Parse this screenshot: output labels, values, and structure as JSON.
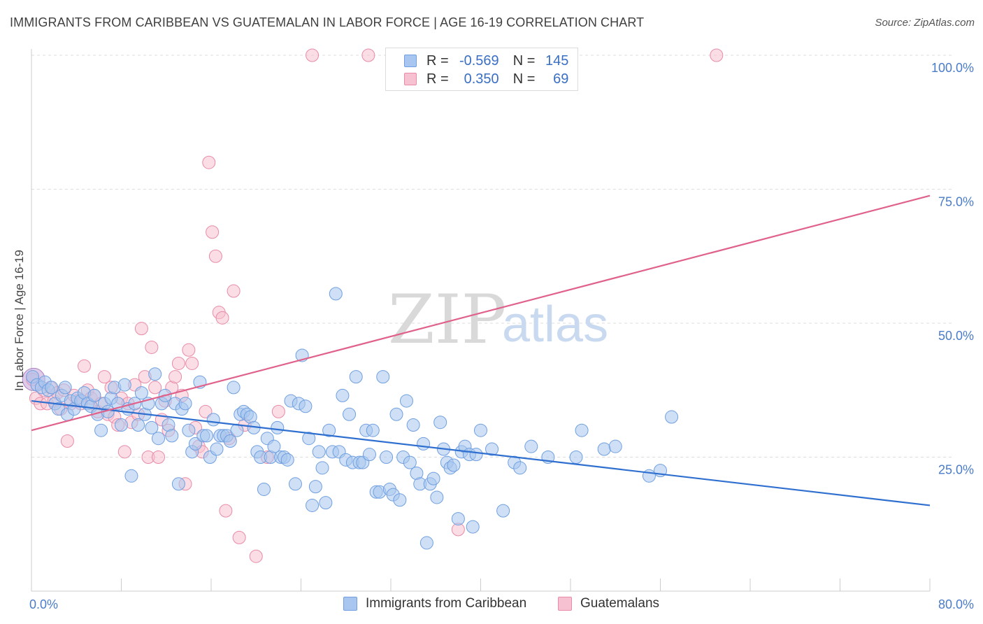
{
  "title": "IMMIGRANTS FROM CARIBBEAN VS GUATEMALAN IN LABOR FORCE | AGE 16-19 CORRELATION CHART",
  "source": "Source: ZipAtlas.com",
  "watermark": {
    "zip": "ZIP",
    "atlas": "atlas"
  },
  "legend": {
    "rows": [
      {
        "r_label": "R =",
        "r_value": "-0.569",
        "n_label": "N =",
        "n_value": "145"
      },
      {
        "r_label": "R =",
        "r_value": "0.350",
        "n_label": "N =",
        "n_value": "69"
      }
    ]
  },
  "bottom_legend": {
    "series1": "Immigrants from Caribbean",
    "series2": "Guatemalans"
  },
  "colors": {
    "blue_fill": "#a8c6ef",
    "blue_stroke": "#6f9fe0",
    "blue_line": "#2f6fcf",
    "pink_fill": "#f6c1d0",
    "pink_stroke": "#e98ba8",
    "pink_line": "#e0628a",
    "grid": "#dddddd",
    "axis_text": "#4a7cc9"
  },
  "chart_data": {
    "type": "scatter",
    "title": "IMMIGRANTS FROM CARIBBEAN VS GUATEMALAN IN LABOR FORCE | AGE 16-19 CORRELATION CHART",
    "xlabel": "",
    "ylabel": "In Labor Force | Age 16-19",
    "xlim": [
      0,
      80
    ],
    "ylim": [
      0,
      102
    ],
    "x_tick_labels": [
      "0.0%",
      "80.0%"
    ],
    "y_ticks": [
      25,
      50,
      75,
      100
    ],
    "y_tick_labels": [
      "25.0%",
      "50.0%",
      "75.0%",
      "100.0%"
    ],
    "series": [
      {
        "name": "Immigrants from Caribbean",
        "R": -0.569,
        "N": 145,
        "trend": {
          "x": [
            0,
            80
          ],
          "y": [
            35.5,
            16.0
          ]
        },
        "points": [
          [
            0.1,
            40.0
          ],
          [
            0.5,
            38.5
          ],
          [
            0.9,
            38.0
          ],
          [
            1.2,
            39.0
          ],
          [
            1.5,
            37.5
          ],
          [
            1.8,
            38.0
          ],
          [
            2.1,
            35.0
          ],
          [
            2.4,
            34.0
          ],
          [
            2.7,
            36.5
          ],
          [
            3.0,
            38.0
          ],
          [
            3.2,
            33.0
          ],
          [
            3.5,
            35.5
          ],
          [
            3.8,
            34.0
          ],
          [
            4.1,
            36.0
          ],
          [
            4.4,
            35.5
          ],
          [
            4.7,
            37.0
          ],
          [
            5.0,
            35.0
          ],
          [
            5.3,
            34.5
          ],
          [
            5.6,
            36.5
          ],
          [
            5.9,
            33.0
          ],
          [
            6.2,
            30.0
          ],
          [
            6.5,
            35.0
          ],
          [
            6.8,
            33.5
          ],
          [
            7.1,
            36.0
          ],
          [
            7.4,
            38.0
          ],
          [
            7.7,
            35.0
          ],
          [
            8.0,
            31.0
          ],
          [
            8.3,
            38.5
          ],
          [
            8.6,
            34.0
          ],
          [
            8.9,
            21.5
          ],
          [
            9.2,
            35.0
          ],
          [
            9.5,
            31.0
          ],
          [
            9.8,
            37.0
          ],
          [
            10.1,
            33.0
          ],
          [
            10.4,
            35.0
          ],
          [
            10.7,
            30.5
          ],
          [
            11.0,
            40.5
          ],
          [
            11.3,
            28.5
          ],
          [
            11.6,
            35.0
          ],
          [
            11.9,
            36.5
          ],
          [
            12.2,
            31.0
          ],
          [
            12.5,
            29.0
          ],
          [
            12.8,
            35.0
          ],
          [
            13.1,
            20.0
          ],
          [
            13.4,
            34.0
          ],
          [
            13.7,
            35.0
          ],
          [
            14.0,
            30.0
          ],
          [
            14.3,
            26.0
          ],
          [
            14.6,
            27.5
          ],
          [
            15.0,
            39.0
          ],
          [
            15.3,
            29.0
          ],
          [
            15.6,
            29.0
          ],
          [
            15.9,
            25.0
          ],
          [
            16.2,
            32.0
          ],
          [
            16.5,
            26.5
          ],
          [
            16.8,
            29.0
          ],
          [
            17.1,
            29.0
          ],
          [
            17.4,
            29.0
          ],
          [
            17.7,
            28.0
          ],
          [
            18.0,
            38.0
          ],
          [
            18.3,
            30.0
          ],
          [
            18.6,
            33.0
          ],
          [
            18.9,
            33.5
          ],
          [
            19.2,
            33.0
          ],
          [
            19.5,
            32.5
          ],
          [
            19.8,
            30.5
          ],
          [
            20.1,
            26.0
          ],
          [
            20.4,
            25.0
          ],
          [
            20.7,
            19.0
          ],
          [
            21.0,
            28.5
          ],
          [
            21.3,
            25.0
          ],
          [
            21.6,
            27.0
          ],
          [
            21.9,
            30.5
          ],
          [
            22.2,
            25.0
          ],
          [
            22.5,
            25.0
          ],
          [
            22.8,
            24.5
          ],
          [
            23.1,
            35.5
          ],
          [
            23.5,
            20.0
          ],
          [
            23.8,
            35.0
          ],
          [
            24.1,
            44.0
          ],
          [
            24.4,
            34.5
          ],
          [
            24.7,
            28.5
          ],
          [
            25.0,
            16.0
          ],
          [
            25.3,
            19.5
          ],
          [
            25.6,
            26.0
          ],
          [
            25.9,
            23.0
          ],
          [
            26.2,
            16.5
          ],
          [
            26.5,
            30.0
          ],
          [
            26.8,
            26.0
          ],
          [
            27.1,
            55.5
          ],
          [
            27.4,
            26.0
          ],
          [
            27.7,
            36.5
          ],
          [
            28.0,
            24.5
          ],
          [
            28.3,
            33.0
          ],
          [
            28.6,
            24.0
          ],
          [
            28.9,
            40.0
          ],
          [
            29.2,
            24.0
          ],
          [
            29.5,
            24.0
          ],
          [
            29.8,
            30.0
          ],
          [
            30.1,
            25.5
          ],
          [
            30.4,
            30.0
          ],
          [
            30.7,
            18.5
          ],
          [
            31.0,
            18.5
          ],
          [
            31.3,
            40.0
          ],
          [
            31.6,
            25.0
          ],
          [
            31.9,
            19.0
          ],
          [
            32.2,
            18.0
          ],
          [
            32.5,
            33.0
          ],
          [
            32.8,
            17.0
          ],
          [
            33.1,
            25.0
          ],
          [
            33.4,
            35.5
          ],
          [
            33.7,
            24.0
          ],
          [
            34.0,
            31.0
          ],
          [
            34.3,
            22.0
          ],
          [
            34.6,
            20.0
          ],
          [
            34.9,
            27.5
          ],
          [
            35.2,
            9.0
          ],
          [
            35.5,
            20.0
          ],
          [
            35.8,
            21.0
          ],
          [
            36.1,
            17.5
          ],
          [
            36.4,
            31.5
          ],
          [
            36.7,
            26.5
          ],
          [
            37.0,
            24.0
          ],
          [
            37.3,
            23.0
          ],
          [
            37.6,
            23.5
          ],
          [
            38.0,
            13.5
          ],
          [
            38.3,
            26.0
          ],
          [
            38.6,
            27.0
          ],
          [
            39.0,
            25.5
          ],
          [
            39.3,
            12.0
          ],
          [
            39.6,
            25.5
          ],
          [
            40.0,
            30.0
          ],
          [
            41.0,
            26.5
          ],
          [
            42.0,
            15.0
          ],
          [
            43.0,
            24.0
          ],
          [
            43.5,
            23.0
          ],
          [
            44.5,
            27.0
          ],
          [
            46.0,
            25.0
          ],
          [
            48.5,
            25.0
          ],
          [
            49.0,
            30.0
          ],
          [
            51.0,
            26.5
          ],
          [
            52.0,
            27.0
          ],
          [
            55.0,
            21.5
          ],
          [
            56.0,
            22.5
          ],
          [
            57.0,
            32.5
          ]
        ]
      },
      {
        "name": "Guatemalans",
        "R": 0.35,
        "N": 69,
        "trend": {
          "x": [
            0,
            80
          ],
          "y": [
            30.0,
            73.8
          ]
        },
        "points": [
          [
            0.1,
            39.5
          ],
          [
            0.4,
            36.0
          ],
          [
            0.8,
            35.0
          ],
          [
            1.1,
            37.5
          ],
          [
            1.4,
            35.0
          ],
          [
            1.7,
            38.0
          ],
          [
            2.0,
            35.5
          ],
          [
            2.3,
            37.0
          ],
          [
            2.6,
            34.0
          ],
          [
            2.9,
            37.5
          ],
          [
            3.2,
            28.0
          ],
          [
            3.5,
            35.0
          ],
          [
            3.8,
            36.5
          ],
          [
            4.1,
            35.5
          ],
          [
            4.4,
            35.0
          ],
          [
            4.7,
            42.0
          ],
          [
            5.0,
            37.5
          ],
          [
            5.3,
            36.0
          ],
          [
            5.6,
            36.5
          ],
          [
            5.9,
            33.5
          ],
          [
            6.2,
            35.0
          ],
          [
            6.5,
            40.0
          ],
          [
            6.8,
            33.0
          ],
          [
            7.1,
            38.0
          ],
          [
            7.4,
            32.5
          ],
          [
            7.7,
            31.0
          ],
          [
            8.0,
            36.0
          ],
          [
            8.3,
            26.0
          ],
          [
            8.6,
            35.0
          ],
          [
            8.9,
            31.5
          ],
          [
            9.2,
            38.5
          ],
          [
            9.5,
            33.0
          ],
          [
            9.8,
            49.0
          ],
          [
            10.1,
            40.0
          ],
          [
            10.4,
            25.0
          ],
          [
            10.7,
            45.5
          ],
          [
            11.0,
            38.0
          ],
          [
            11.3,
            25.0
          ],
          [
            11.6,
            32.0
          ],
          [
            11.9,
            35.5
          ],
          [
            12.2,
            30.0
          ],
          [
            12.5,
            38.0
          ],
          [
            12.8,
            40.0
          ],
          [
            13.1,
            42.5
          ],
          [
            13.4,
            36.5
          ],
          [
            13.7,
            20.0
          ],
          [
            14.0,
            45.0
          ],
          [
            14.3,
            42.5
          ],
          [
            14.6,
            30.5
          ],
          [
            14.9,
            27.0
          ],
          [
            15.2,
            26.0
          ],
          [
            15.5,
            33.5
          ],
          [
            15.8,
            80.0
          ],
          [
            16.1,
            67.0
          ],
          [
            16.4,
            62.5
          ],
          [
            16.7,
            52.0
          ],
          [
            17.0,
            51.0
          ],
          [
            17.3,
            15.0
          ],
          [
            17.6,
            28.5
          ],
          [
            18.0,
            56.0
          ],
          [
            18.5,
            10.0
          ],
          [
            19.0,
            31.0
          ],
          [
            20.0,
            6.5
          ],
          [
            21.0,
            25.0
          ],
          [
            22.0,
            33.5
          ],
          [
            25.0,
            100.0
          ],
          [
            30.0,
            100.0
          ],
          [
            38.0,
            11.5
          ],
          [
            61.0,
            100.0
          ]
        ]
      }
    ]
  }
}
